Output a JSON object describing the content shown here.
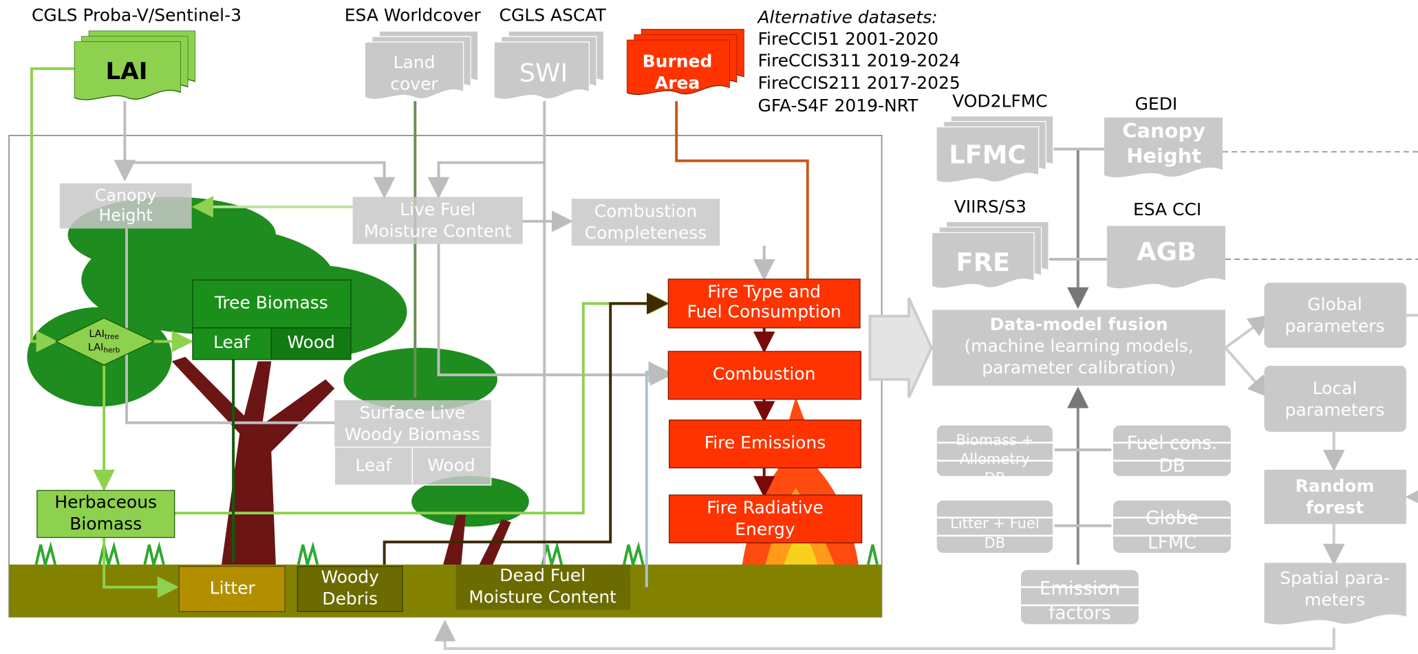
{
  "sources": [
    {
      "title": "CGLS Proba-V/Sentinel-3",
      "label": [
        "LAI"
      ]
    },
    {
      "title": "ESA Worldcover",
      "label": [
        "Land",
        "cover"
      ]
    },
    {
      "title": "CGLS ASCAT",
      "label": [
        "SWI"
      ]
    },
    {
      "label": [
        "Burned",
        "Area"
      ]
    }
  ],
  "alternative_datasets": {
    "title": "Alternative datasets:",
    "items": [
      "FireCCI51 2001-2020",
      "FireCCIS311 2019-2024",
      "FireCCIS211 2017-2025",
      "GFA-S4F 2019-NRT"
    ]
  },
  "nodes": {
    "canopy_height": [
      "Canopy",
      "Height"
    ],
    "live_fuel_moisture": [
      "Live Fuel",
      "Moisture Content"
    ],
    "combustion_completeness": [
      "Combustion",
      "Completeness"
    ],
    "tree_biomass": {
      "label": "Tree Biomass",
      "parts": [
        "Leaf",
        "Wood"
      ]
    },
    "lai_split": [
      {
        "base": "LAI",
        "sub": "tree"
      },
      {
        "base": "LAI",
        "sub": "herb"
      }
    ],
    "surface_live_woody": {
      "label": [
        "Surface Live",
        "Woody Biomass"
      ],
      "parts": [
        "Leaf",
        "Wood"
      ]
    },
    "herbaceous_biomass": [
      "Herbaceous",
      "Biomass"
    ],
    "litter": [
      "Litter"
    ],
    "woody_debris": [
      "Woody",
      "Debris"
    ],
    "dead_fuel_moisture": [
      "Dead Fuel",
      "Moisture Content"
    ],
    "fire_type": [
      "Fire Type and",
      "Fuel Consumption"
    ],
    "combustion": [
      "Combustion"
    ],
    "fire_emissions": [
      "Fire Emissions"
    ],
    "fire_radiative_energy": [
      "Fire Radiative",
      "Energy"
    ]
  },
  "right_sources": [
    {
      "title": "VOD2LFMC",
      "label": [
        "LFMC"
      ]
    },
    {
      "title": "GEDI",
      "label": [
        "Canopy",
        "Height"
      ]
    },
    {
      "title": "VIIRS/S3",
      "label": [
        "FRE"
      ]
    },
    {
      "title": "ESA CCI",
      "label": [
        "AGB"
      ]
    }
  ],
  "fusion": {
    "title": "Data-model fusion",
    "lines": [
      "(machine learning models,",
      "parameter calibration)"
    ]
  },
  "databases": [
    [
      "Biomass +",
      "Allometry",
      "DB"
    ],
    [
      "Fuel cons.",
      "DB"
    ],
    [
      "Litter + Fuel",
      "DB"
    ],
    [
      "Globe",
      "LFMC"
    ],
    [
      "Emission",
      "factors"
    ]
  ],
  "outputs": {
    "global": [
      "Global",
      "parameters"
    ],
    "local": [
      "Local",
      "parameters"
    ],
    "random_forest": [
      "Random",
      "forest"
    ],
    "spatial": [
      "Spatial para-",
      "meters"
    ]
  }
}
